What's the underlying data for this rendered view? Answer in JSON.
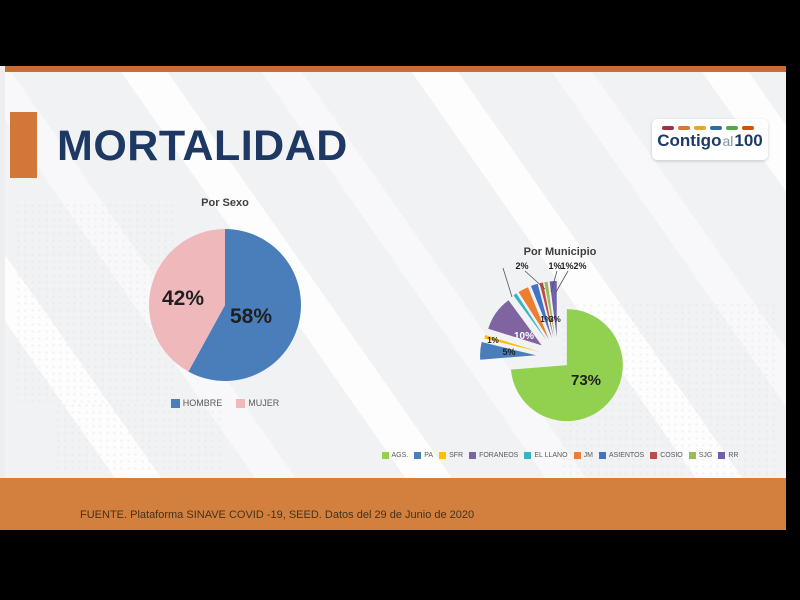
{
  "frame": {
    "background": "#000000",
    "left_strip_color": "#ECEEF0"
  },
  "slide": {
    "title": "MORTALIDAD",
    "title_color": "#1E3864",
    "accent_orange": "#D2773A",
    "top_strip_color": "#C76F2E",
    "background": "#F1F2F4"
  },
  "logo": {
    "word1": "Contigo",
    "word2": "al",
    "word3": "100",
    "text_color": "#1E3A66",
    "dash_colors": [
      "#9C3343",
      "#DC7633",
      "#E3A72F",
      "#2E6DA4",
      "#57A64A",
      "#D35400"
    ]
  },
  "footer": {
    "text": "FUENTE. Plataforma SINAVE COVID -19, SEED. Datos del 29 de Junio de 2020",
    "band_color": "#D3803F",
    "text_color": "#42321C"
  },
  "chart_data": [
    {
      "type": "pie",
      "title": "Por Sexo",
      "categories": [
        "HOMBRE",
        "MUJER"
      ],
      "values": [
        58,
        42
      ],
      "labels": [
        "58%",
        "42%"
      ],
      "colors": [
        "#4A7EBB",
        "#EFB9BC"
      ],
      "label_colors": [
        "#1F1F1F",
        "#1F1F1F"
      ],
      "legend_position": "bottom",
      "exploded": false
    },
    {
      "type": "pie",
      "title": "Por Municipio",
      "categories": [
        "AGS.",
        "PA",
        "SFR",
        "FORANEOS",
        "EL LLANO",
        "JM",
        "ASIENTOS",
        "COSIO",
        "SJG",
        "RR"
      ],
      "values": [
        73,
        5,
        1,
        10,
        1,
        3,
        2,
        1,
        1,
        2
      ],
      "labels": [
        "73%",
        "5%",
        "1%",
        "10%",
        "1%",
        "3%",
        "2%",
        "1%",
        "1%",
        "2%"
      ],
      "colors": [
        "#92D050",
        "#4A7EBB",
        "#FFC000",
        "#8064A2",
        "#35B4C7",
        "#ED7D31",
        "#4472C4",
        "#BE4B48",
        "#9BBB59",
        "#7060A8"
      ],
      "label_colors": [
        "#1F1F1F",
        "#1F1F1F",
        "#1F1F1F",
        "#FFFFFF",
        "#1F1F1F",
        "#1F1F1F",
        "#1F1F1F",
        "#1F1F1F",
        "#1F1F1F",
        "#1F1F1F"
      ],
      "legend_position": "bottom",
      "exploded": true
    }
  ]
}
